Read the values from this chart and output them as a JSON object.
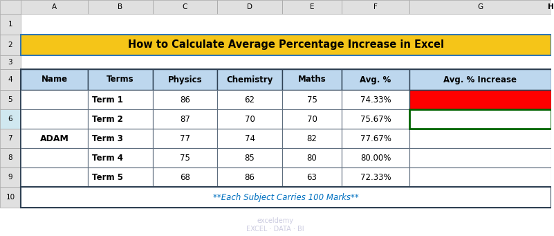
{
  "title": "How to Calculate Average Percentage Increase in Excel",
  "title_bg": "#F5C518",
  "title_color": "#000000",
  "col_header_bg": "#BDD7EE",
  "col_headers": [
    "Name",
    "Terms",
    "Physics",
    "Chemistry",
    "Maths",
    "Avg. %",
    "Avg. % Increase"
  ],
  "name_cell": "ADAM",
  "rows": [
    [
      "Term 1",
      "86",
      "62",
      "75",
      "74.33%",
      ""
    ],
    [
      "Term 2",
      "87",
      "70",
      "70",
      "75.67%",
      ""
    ],
    [
      "Term 3",
      "77",
      "74",
      "82",
      "77.67%",
      ""
    ],
    [
      "Term 4",
      "75",
      "85",
      "80",
      "80.00%",
      ""
    ],
    [
      "Term 5",
      "68",
      "86",
      "63",
      "72.33%",
      ""
    ]
  ],
  "footer": "**Each Subject Carries 100 Marks**",
  "footer_color": "#0070C0",
  "row5_last_col_bg": "#FF0000",
  "row6_last_col_border": "#006400",
  "table_border_color": "#2E4053",
  "cell_bg_white": "#FFFFFF",
  "bg_color": "#FFFFFF",
  "grid_color": "#5D6D7E",
  "excel_col_headers": [
    "A",
    "B",
    "C",
    "D",
    "E",
    "F",
    "G",
    "H"
  ],
  "excel_row_headers": [
    "1",
    "2",
    "3",
    "4",
    "5",
    "6",
    "7",
    "8",
    "9",
    "10"
  ],
  "col_header_h_bg": "#C0C0C0",
  "col_h_selected_bg": "#D0E8F0"
}
